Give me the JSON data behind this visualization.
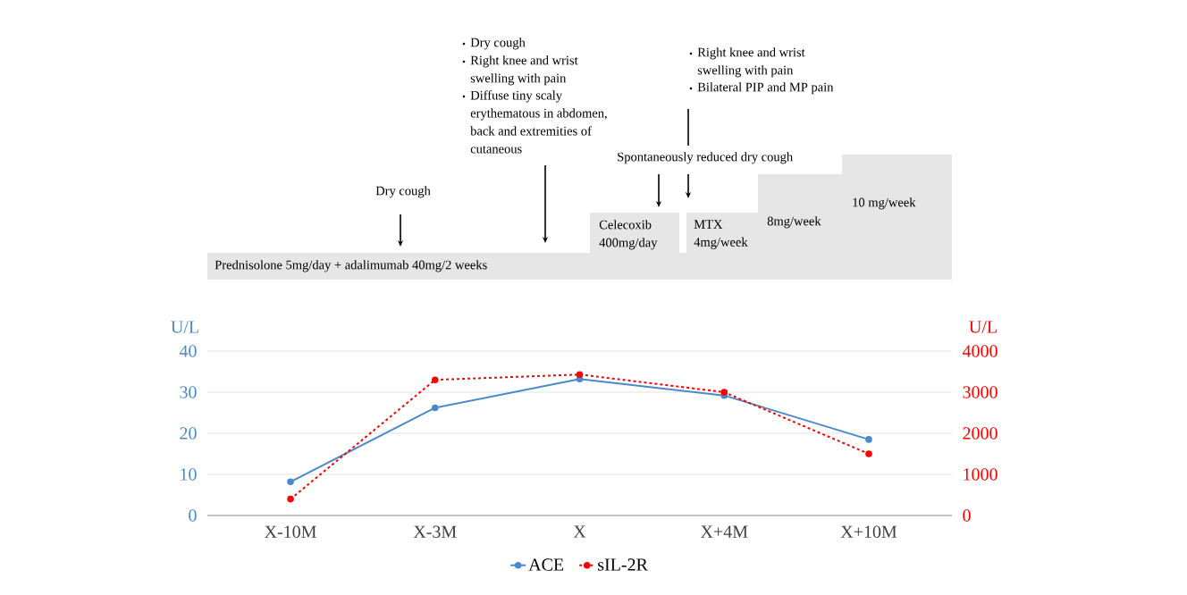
{
  "chart_data": {
    "type": "line",
    "categories": [
      "X-10M",
      "X-3M",
      "X",
      "X+4M",
      "X+10M"
    ],
    "series": [
      {
        "name": "ACE",
        "color": "#4a89cc",
        "values": [
          8.2,
          26.2,
          33.2,
          29.2,
          18.5
        ],
        "line_style": "solid"
      },
      {
        "name": "sIL-2R",
        "color": "#ff0000",
        "values": [
          400,
          3300,
          3430,
          3000,
          1500
        ],
        "axis": "y2",
        "line_style": "dashed"
      }
    ],
    "ylabel": "U/L",
    "y2label": "U/L",
    "ylim": [
      0,
      40
    ],
    "yticks": [
      0,
      10,
      20,
      30,
      40
    ],
    "y2lim": [
      0,
      4000
    ],
    "y2ticks": [
      0,
      1000,
      2000,
      3000,
      4000
    ],
    "grid": "y",
    "legend": "bottom",
    "marker": "circle",
    "annotations": [
      "Prednisolone 5mg/day + adalimumab 40mg/2 weeks",
      "Celecoxib 400mg/day",
      "MTX 4mg/week",
      "8mg/week",
      "10 mg/week",
      "Dry cough",
      "Dry cough",
      "Right knee and wrist swelling with pain",
      "Diffuse tiny scaly erythematous in abdomen, back and extremities of cutaneous",
      "Spontaneously reduced dry cough",
      "Right knee and wrist swelling with pain",
      "Bilateral PIP and MP pain"
    ]
  }
}
